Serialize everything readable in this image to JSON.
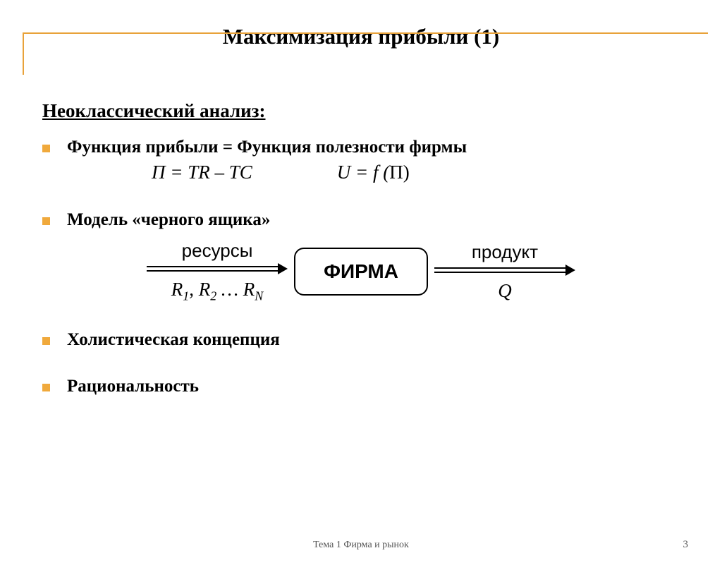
{
  "frame": {
    "color": "#e8a23a"
  },
  "bullet_color": "#f0a93c",
  "title": "Максимизация прибыли (1)",
  "subhead": "Неоклассический анализ:",
  "items": {
    "b1": "Функция прибыли = Функция полезности фирмы",
    "b2": "Модель «черного ящика»",
    "b3": "Холистическая концепция",
    "b4": "Рациональность"
  },
  "formulas": {
    "left": "П = TR – TC",
    "right_pre": "U = f (",
    "right_post": "П)"
  },
  "diagram": {
    "left_top": "ресурсы",
    "left_sub_html": "R<sub>1</sub>, R<sub>2</sub> … R<sub>N</sub>",
    "box": "ФИРМА",
    "right_top": "продукт",
    "right_sub": "Q",
    "arrow_color": "#000000",
    "box_border": "#000000"
  },
  "footer": "Тема 1 Фирма и рынок",
  "page": "3"
}
